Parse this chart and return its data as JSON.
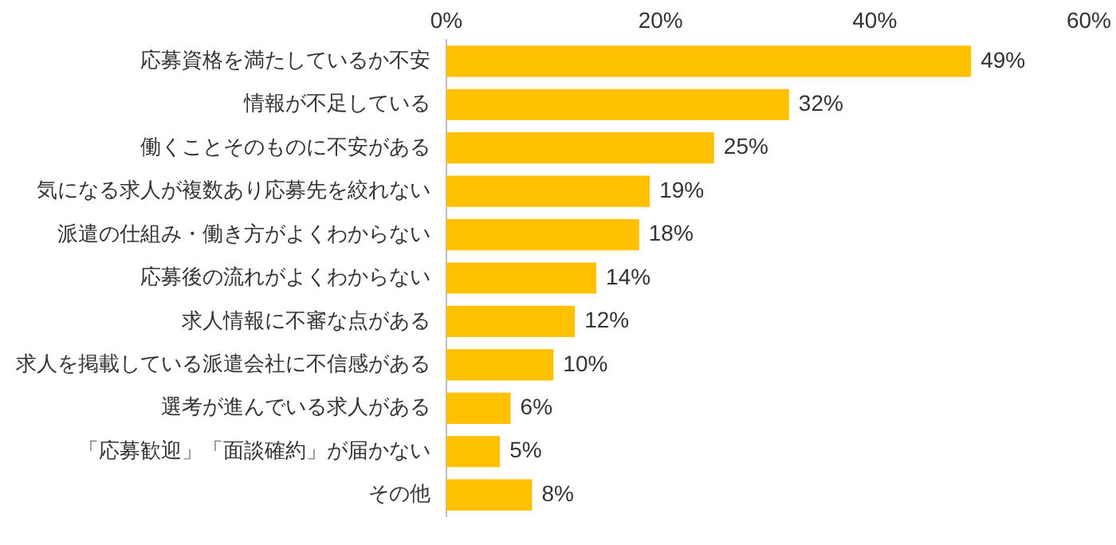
{
  "chart_data": {
    "type": "bar",
    "orientation": "horizontal",
    "categories": [
      "応募資格を満たしているか不安",
      "情報が不足している",
      "働くことそのものに不安がある",
      "気になる求人が複数あり応募先を絞れない",
      "派遣の仕組み・働き方がよくわからない",
      "応募後の流れがよくわからない",
      "求人情報に不審な点がある",
      "求人を掲載している派遣会社に不信感がある",
      "選考が進んでいる求人がある",
      "「応募歓迎」「面談確約」が届かない",
      "その他"
    ],
    "values": [
      49,
      32,
      25,
      19,
      18,
      14,
      12,
      10,
      6,
      5,
      8
    ],
    "value_labels": [
      "49%",
      "32%",
      "25%",
      "19%",
      "18%",
      "14%",
      "12%",
      "10%",
      "6%",
      "5%",
      "8%"
    ],
    "color": "#ffc000",
    "xlim": [
      0,
      60
    ],
    "xticks": [
      {
        "value": 0,
        "label": "0%"
      },
      {
        "value": 20,
        "label": "20%"
      },
      {
        "value": 40,
        "label": "40%"
      },
      {
        "value": 60,
        "label": "60%"
      }
    ],
    "grid": false,
    "legend": false
  }
}
